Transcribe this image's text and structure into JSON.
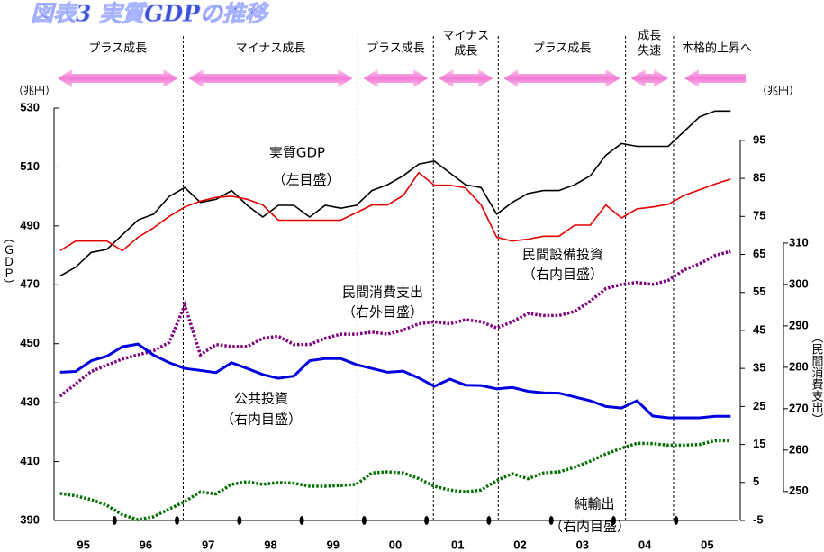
{
  "chart_data": {
    "type": "line",
    "title": "図表3 実質GDPの推移",
    "y_unit": "（兆円）",
    "y2_unit": "（兆円）",
    "ylabel": "（ＧＤＰ）",
    "y3label": "（民間消費支出）",
    "xlim": [
      1995,
      2006
    ],
    "xticks": [
      {
        "value": 1995.5,
        "label": "95"
      },
      {
        "value": 1996.5,
        "label": "96"
      },
      {
        "value": 1997.5,
        "label": "97"
      },
      {
        "value": 1998.5,
        "label": "98"
      },
      {
        "value": 1999.5,
        "label": "99"
      },
      {
        "value": 2000.5,
        "label": "00"
      },
      {
        "value": 2001.5,
        "label": "01"
      },
      {
        "value": 2002.5,
        "label": "02"
      },
      {
        "value": 2003.5,
        "label": "03"
      },
      {
        "value": 2004.5,
        "label": "04"
      },
      {
        "value": 2005.5,
        "label": "05"
      }
    ],
    "xminorticks": [
      1996,
      1997,
      1998,
      1999,
      2000,
      2001,
      2002,
      2003,
      2004,
      2005
    ],
    "ylim": [
      390,
      530
    ],
    "yticks": [
      390,
      410,
      430,
      450,
      470,
      490,
      510,
      530
    ],
    "y2lim": [
      -5,
      103.5
    ],
    "y2ticks": [
      -5,
      5,
      15,
      25,
      35,
      45,
      55,
      65,
      75,
      85,
      95
    ],
    "y3lim": [
      243,
      342.6
    ],
    "y3ticks": [
      250,
      260,
      270,
      280,
      290,
      300,
      310
    ],
    "dividers": [
      1997.1,
      1999.9,
      2001.11,
      2002.15,
      2004.19,
      2004.96
    ],
    "phases": [
      [
        "プラス成長"
      ],
      [
        "マイナス成長"
      ],
      [
        "プラス成長"
      ],
      [
        "マイナス",
        "成長"
      ],
      [
        "プラス成長"
      ],
      [
        "成長",
        "失速"
      ],
      [
        "本格的上昇へ"
      ]
    ],
    "x": [
      1995.125,
      1995.375,
      1995.625,
      1995.875,
      1996.125,
      1996.375,
      1996.625,
      1996.875,
      1997.125,
      1997.375,
      1997.625,
      1997.875,
      1998.125,
      1998.375,
      1998.625,
      1998.875,
      1999.125,
      1999.375,
      1999.625,
      1999.875,
      2000.125,
      2000.375,
      2000.625,
      2000.875,
      2001.125,
      2001.375,
      2001.625,
      2001.875,
      2002.125,
      2002.375,
      2002.625,
      2002.875,
      2003.125,
      2003.375,
      2003.625,
      2003.875,
      2004.125,
      2004.375,
      2004.625,
      2004.875,
      2005.125,
      2005.375,
      2005.625,
      2005.875
    ],
    "series": [
      {
        "name": "実質GDP",
        "note": "（左目盛）",
        "color": "#000000",
        "axis": "y",
        "style": "solid",
        "values": [
          473,
          476,
          481,
          482,
          487,
          492,
          494,
          500,
          503,
          498,
          499,
          502,
          497,
          493,
          497,
          497,
          493,
          497,
          496,
          497,
          502,
          504,
          507,
          511,
          512,
          508,
          504,
          503,
          494,
          498,
          501,
          502,
          502,
          504,
          507,
          514,
          518,
          517,
          517,
          517,
          522,
          527,
          529,
          529
        ]
      },
      {
        "name": "民間設備投資",
        "note": "（右内目盛）",
        "color": "#e00000",
        "axis": "y2",
        "style": "solid",
        "values": [
          66,
          68.5,
          68.5,
          68.5,
          66,
          69.5,
          72,
          75,
          77.5,
          79,
          80,
          80.3,
          79.5,
          78,
          74,
          74,
          74,
          74,
          74,
          76,
          78,
          78,
          80.5,
          86.5,
          83.2,
          83.2,
          82.5,
          78,
          69.5,
          68.5,
          69,
          69.8,
          69.8,
          72.7,
          72.7,
          78,
          74.6,
          77,
          77.5,
          78.2,
          80.5,
          82,
          83.5,
          84.8
        ]
      },
      {
        "name": "民間消費支出",
        "note": "（右外目盛）",
        "color": "#800080",
        "axis": "y3",
        "style": "dotted",
        "values": [
          273,
          276,
          279,
          280.5,
          282,
          283,
          284,
          286,
          295,
          283,
          285.5,
          285,
          285,
          287,
          287.5,
          285.5,
          285.5,
          287,
          288,
          288,
          288.5,
          288,
          289,
          290.5,
          291,
          290.5,
          291.5,
          291,
          289.5,
          291,
          293,
          292.5,
          292.5,
          293.5,
          296,
          299,
          300,
          300.5,
          300,
          301,
          303.5,
          305,
          307,
          308
        ]
      },
      {
        "name": "公共投資",
        "note": "（右内目盛）",
        "color": "#0000e0",
        "axis": "y2",
        "style": "solid",
        "values": [
          34,
          34.2,
          37,
          38.2,
          40.7,
          41.4,
          38.5,
          36.5,
          35,
          34.5,
          33.9,
          36.5,
          35,
          33.4,
          32.4,
          33,
          37,
          37.6,
          37.6,
          36,
          35,
          34,
          34.3,
          32.5,
          30.3,
          32.2,
          30.6,
          30.5,
          29.6,
          30,
          29,
          28.6,
          28.5,
          27.5,
          26.5,
          25,
          24.6,
          26.5,
          22.5,
          22,
          22,
          22,
          22.4,
          22.4
        ]
      },
      {
        "name": "純輸出",
        "note": "（右内目盛）",
        "color": "#007000",
        "axis": "y2",
        "style": "dotted",
        "values": [
          2.1,
          1.5,
          0.5,
          -1,
          -3.5,
          -4.8,
          -4,
          -2,
          0,
          2.5,
          2,
          4.5,
          5.2,
          4.5,
          5,
          4.8,
          4,
          4,
          4.2,
          4.5,
          7.5,
          7.8,
          7.5,
          6,
          4,
          3,
          2.5,
          3,
          5.5,
          7.3,
          6,
          7.5,
          7.8,
          9,
          10.6,
          12.5,
          14,
          15.3,
          15.2,
          14.8,
          14.8,
          15,
          16,
          16
        ]
      }
    ]
  }
}
